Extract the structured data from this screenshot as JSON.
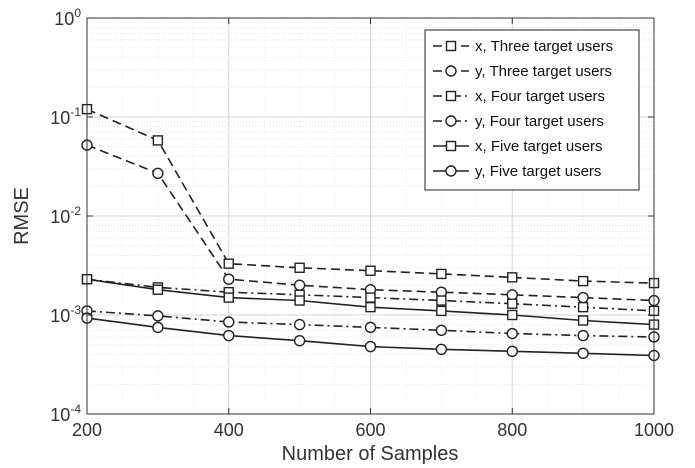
{
  "chart_data": {
    "type": "line",
    "xlabel": "Number of Samples",
    "ylabel": "RMSE",
    "yscale": "log",
    "xlim": [
      200,
      1000
    ],
    "ylim": [
      0.0001,
      1
    ],
    "grid": true,
    "legend_position": "top-right",
    "xticks": [
      200,
      400,
      600,
      800,
      1000
    ],
    "xtick_labels": [
      "200",
      "400",
      "600",
      "800",
      "1000"
    ],
    "yticks": [
      0.0001,
      0.001,
      0.01,
      0.1,
      1
    ],
    "ytick_labels": [
      {
        "base": "10",
        "exp": "-4"
      },
      {
        "base": "10",
        "exp": "-3"
      },
      {
        "base": "10",
        "exp": "-2"
      },
      {
        "base": "10",
        "exp": "-1"
      },
      {
        "base": "10",
        "exp": "0"
      }
    ],
    "x": [
      200,
      300,
      400,
      500,
      600,
      700,
      800,
      900,
      1000
    ],
    "series": [
      {
        "name": "x, Three target users",
        "marker": "square",
        "line": "dashed",
        "values": [
          0.12,
          0.058,
          0.0033,
          0.003,
          0.0028,
          0.0026,
          0.0024,
          0.0022,
          0.0021
        ]
      },
      {
        "name": "y, Three target users",
        "marker": "circle",
        "line": "dashed",
        "values": [
          0.052,
          0.027,
          0.0023,
          0.002,
          0.0018,
          0.0017,
          0.0016,
          0.0015,
          0.0014
        ]
      },
      {
        "name": "x, Four target users",
        "marker": "square",
        "line": "dashdot",
        "values": [
          0.0023,
          0.0019,
          0.0017,
          0.0016,
          0.0015,
          0.0014,
          0.0013,
          0.0012,
          0.0011
        ]
      },
      {
        "name": "y, Four target users",
        "marker": "circle",
        "line": "dashdot",
        "values": [
          0.0011,
          0.00098,
          0.00085,
          0.0008,
          0.00075,
          0.0007,
          0.00065,
          0.00062,
          0.0006
        ]
      },
      {
        "name": "x, Five target users",
        "marker": "square",
        "line": "solid",
        "values": [
          0.0023,
          0.0018,
          0.0015,
          0.0014,
          0.0012,
          0.0011,
          0.001,
          0.00088,
          0.0008
        ]
      },
      {
        "name": "y, Five target users",
        "marker": "circle",
        "line": "solid",
        "values": [
          0.00093,
          0.00075,
          0.00062,
          0.00055,
          0.00048,
          0.00045,
          0.00043,
          0.00041,
          0.00039
        ]
      }
    ]
  }
}
